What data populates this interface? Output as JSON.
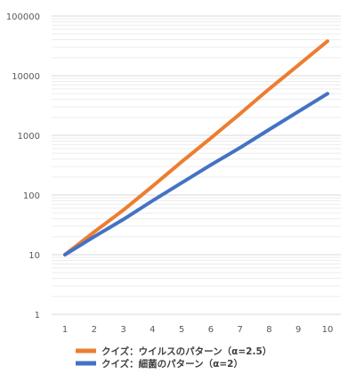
{
  "chart_data": {
    "type": "line",
    "x": [
      1,
      2,
      3,
      4,
      5,
      6,
      7,
      8,
      9,
      10
    ],
    "series": [
      {
        "name": "クイズ：ウイルスのパターン（α=2.5）",
        "color": "#ED7D31",
        "values": [
          10,
          24,
          56,
          140,
          360,
          900,
          2300,
          6000,
          15000,
          38000
        ]
      },
      {
        "name": "クイズ：細菌のパターン（α=2）",
        "color": "#4472C4",
        "values": [
          10,
          20,
          39,
          80,
          160,
          320,
          620,
          1250,
          2500,
          5000
        ]
      }
    ],
    "x_ticks": [
      "1",
      "2",
      "3",
      "4",
      "5",
      "6",
      "7",
      "8",
      "9",
      "10"
    ],
    "y_ticks": [
      "1",
      "10",
      "100",
      "1000",
      "10000",
      "100000"
    ],
    "y_scale": "log",
    "ylim": [
      1,
      100000
    ],
    "xlim": [
      1,
      10
    ],
    "grid": true,
    "legend_position": "bottom-left",
    "title": "",
    "xlabel": "",
    "ylabel": ""
  }
}
